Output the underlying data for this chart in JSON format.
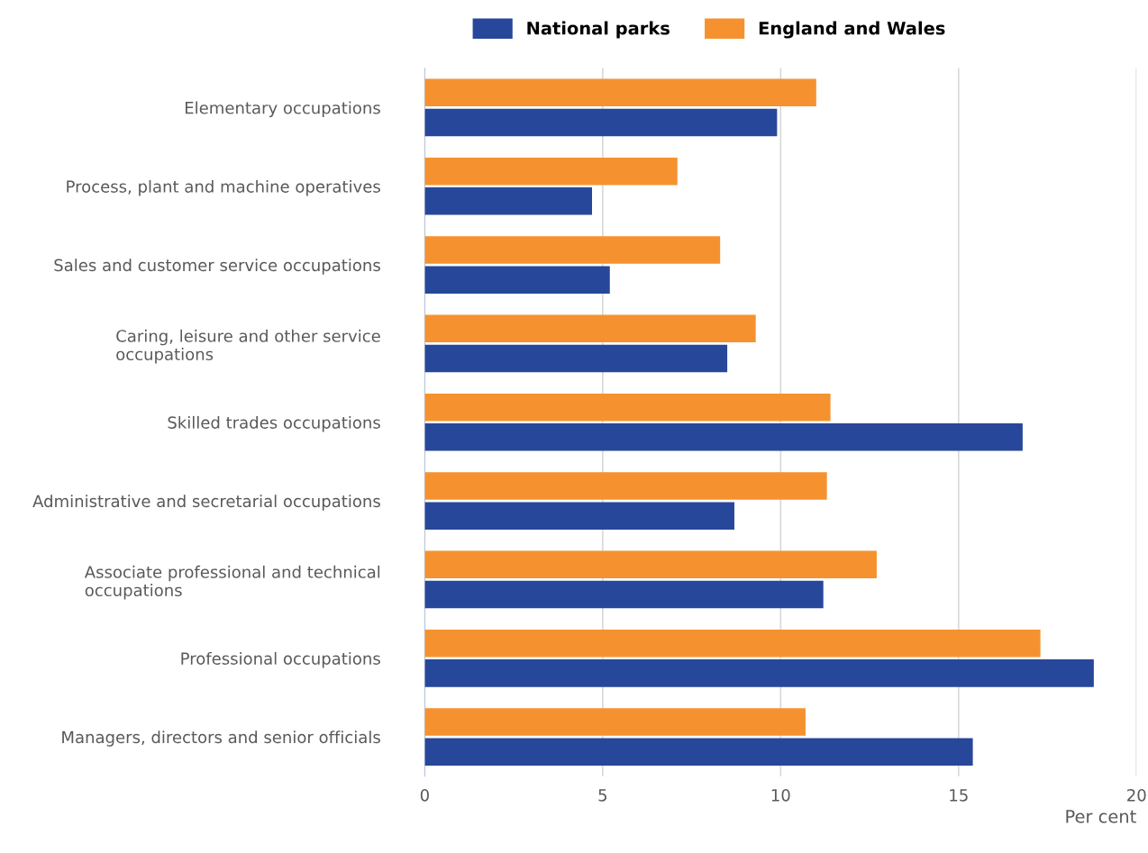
{
  "chart_data": {
    "type": "bar",
    "orientation": "horizontal",
    "xlabel": "Per cent",
    "categories": [
      "Elementary occupations",
      "Process, plant and machine operatives",
      "Sales and customer service occupations",
      "Caring, leisure and other service occupations",
      "Skilled trades occupations",
      "Administrative and secretarial occupations",
      "Associate professional and technical occupations",
      "Professional occupations",
      "Managers, directors and senior officials"
    ],
    "series": [
      {
        "name": "National parks",
        "color": "#27479a",
        "values": [
          9.9,
          4.7,
          5.2,
          8.5,
          16.8,
          8.7,
          11.2,
          18.8,
          15.4
        ]
      },
      {
        "name": "England and Wales",
        "color": "#f5922f",
        "values": [
          11.0,
          7.1,
          8.3,
          9.3,
          11.4,
          11.3,
          12.7,
          17.3,
          10.7
        ]
      }
    ],
    "xlim": [
      0,
      20
    ],
    "xticks": [
      0,
      5,
      10,
      15,
      20
    ],
    "grid": "x",
    "legend": "top"
  }
}
